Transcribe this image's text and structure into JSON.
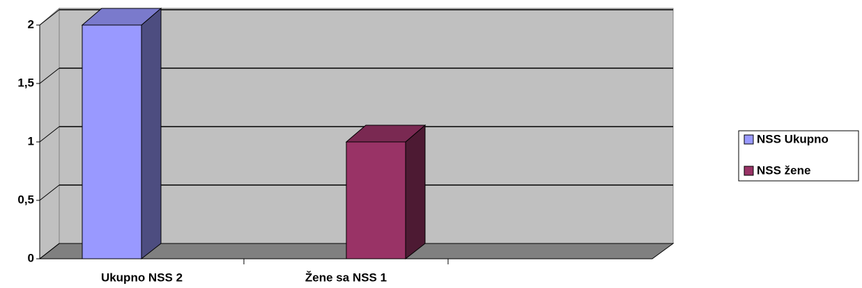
{
  "chart_data": {
    "type": "bar",
    "categories": [
      "Ukupno NSS 2",
      "Žene sa NSS 1",
      null
    ],
    "series": [
      {
        "name": "NSS Ukupno",
        "color": "#9999ff",
        "values": [
          2,
          null,
          null
        ]
      },
      {
        "name": "NSS žene",
        "color": "#993366",
        "values": [
          null,
          1,
          null
        ]
      }
    ],
    "ylim": [
      0,
      2
    ],
    "yticks": [
      0,
      {
        "value": 0.5,
        "label": "0,5"
      },
      1,
      {
        "value": 1.5,
        "label": "1,5"
      },
      2
    ],
    "grid": true,
    "legend": "right"
  }
}
